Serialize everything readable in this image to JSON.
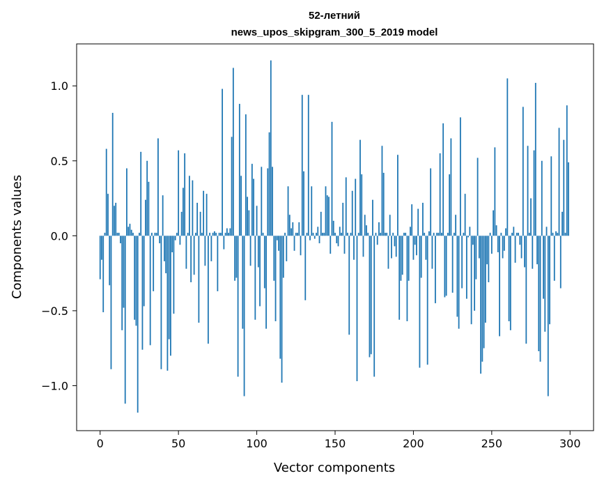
{
  "chart_data": {
    "type": "bar",
    "title": "52-летний",
    "subtitle": "news_upos_skipgram_300_5_2019 model",
    "xlabel": "Vector components",
    "ylabel": "Components values",
    "xlim": [
      -15,
      315
    ],
    "ylim": [
      -1.3,
      1.28
    ],
    "xticks": [
      0,
      50,
      100,
      150,
      200,
      250,
      300
    ],
    "xtick_labels": [
      "0",
      "50",
      "100",
      "150",
      "200",
      "250",
      "300"
    ],
    "yticks": [
      -1.0,
      -0.5,
      0.0,
      0.5,
      1.0
    ],
    "ytick_labels": [
      "−1.0",
      "−0.5",
      "0.0",
      "0.5",
      "1.0"
    ],
    "grid": false,
    "bar_color": "#1f77b4",
    "values": [
      -0.29,
      -0.16,
      -0.51,
      0.02,
      0.58,
      0.28,
      -0.33,
      -0.89,
      0.82,
      0.2,
      0.22,
      0.02,
      0.02,
      -0.05,
      -0.63,
      -0.48,
      -1.12,
      0.45,
      0.06,
      0.08,
      0.04,
      0.02,
      -0.56,
      -0.6,
      -1.18,
      0.02,
      0.56,
      -0.76,
      -0.47,
      0.24,
      0.5,
      0.36,
      -0.73,
      0.02,
      -0.37,
      0.02,
      0.02,
      0.65,
      -0.05,
      -0.89,
      0.27,
      -0.17,
      -0.25,
      -0.9,
      -0.69,
      -0.8,
      -0.11,
      -0.52,
      -0.03,
      0.02,
      0.57,
      -0.06,
      0.16,
      0.32,
      0.55,
      -0.22,
      0.02,
      0.4,
      -0.31,
      0.37,
      -0.26,
      0.02,
      0.22,
      -0.58,
      0.16,
      0.02,
      0.3,
      -0.2,
      0.28,
      -0.72,
      0.02,
      -0.17,
      0.02,
      0.03,
      0.02,
      -0.37,
      0.02,
      0.02,
      0.98,
      -0.09,
      0.02,
      0.05,
      0.02,
      0.05,
      0.66,
      1.12,
      -0.3,
      -0.28,
      -0.94,
      0.88,
      0.4,
      -0.62,
      -1.07,
      0.81,
      0.26,
      0.17,
      -0.2,
      0.48,
      0.38,
      -0.56,
      0.2,
      -0.21,
      -0.47,
      0.46,
      0.02,
      -0.35,
      -0.62,
      0.45,
      0.69,
      1.17,
      0.46,
      -0.3,
      -0.57,
      -0.03,
      -0.1,
      -0.82,
      -0.98,
      -0.28,
      0.02,
      -0.17,
      0.33,
      0.14,
      0.05,
      0.09,
      -0.1,
      0.02,
      0.02,
      0.09,
      -0.13,
      0.94,
      0.43,
      -0.43,
      0.02,
      0.94,
      -0.03,
      0.33,
      0.02,
      -0.02,
      0.02,
      0.06,
      -0.05,
      0.16,
      0.02,
      0.02,
      0.33,
      0.27,
      0.26,
      -0.12,
      0.76,
      0.1,
      0.02,
      -0.05,
      -0.07,
      0.06,
      0.02,
      0.22,
      -0.12,
      0.39,
      0.02,
      -0.66,
      0.02,
      0.3,
      -0.16,
      0.38,
      -0.97,
      0.02,
      0.64,
      0.41,
      -0.14,
      0.14,
      0.07,
      0.02,
      -0.81,
      -0.79,
      0.24,
      -0.94,
      0.02,
      -0.06,
      0.09,
      0.02,
      0.6,
      0.42,
      0.02,
      0.02,
      -0.22,
      0.14,
      -0.15,
      0.02,
      -0.07,
      -0.14,
      0.54,
      -0.56,
      -0.3,
      -0.26,
      0.02,
      0.02,
      -0.57,
      -0.3,
      0.06,
      0.21,
      -0.16,
      -0.06,
      -0.13,
      0.18,
      -0.88,
      -0.28,
      0.22,
      0.02,
      -0.16,
      -0.86,
      0.03,
      0.45,
      -0.22,
      0.02,
      -0.45,
      0.02,
      0.02,
      0.55,
      0.02,
      0.75,
      -0.41,
      -0.4,
      0.02,
      0.41,
      0.65,
      -0.38,
      0.02,
      0.14,
      -0.54,
      -0.62,
      0.79,
      -0.35,
      0.02,
      0.28,
      -0.42,
      -0.01,
      0.06,
      -0.59,
      -0.06,
      -0.5,
      -0.29,
      0.52,
      -0.15,
      -0.92,
      -0.84,
      -0.75,
      -0.58,
      -0.19,
      -0.31,
      0.02,
      -0.12,
      0.17,
      0.59,
      0.07,
      -0.11,
      -0.67,
      0.02,
      -0.15,
      -0.1,
      0.05,
      1.05,
      -0.57,
      -0.63,
      0.02,
      0.06,
      -0.18,
      0.02,
      0.02,
      -0.06,
      -0.15,
      0.86,
      -0.21,
      -0.72,
      0.6,
      0.02,
      0.25,
      -0.22,
      0.57,
      1.02,
      -0.19,
      -0.77,
      -0.84,
      0.5,
      -0.42,
      -0.64,
      0.06,
      -1.07,
      -0.59,
      0.53,
      0.02,
      -0.3,
      0.03,
      0.02,
      0.72,
      -0.35,
      0.16,
      0.64,
      0.02,
      0.87,
      0.49
    ]
  }
}
